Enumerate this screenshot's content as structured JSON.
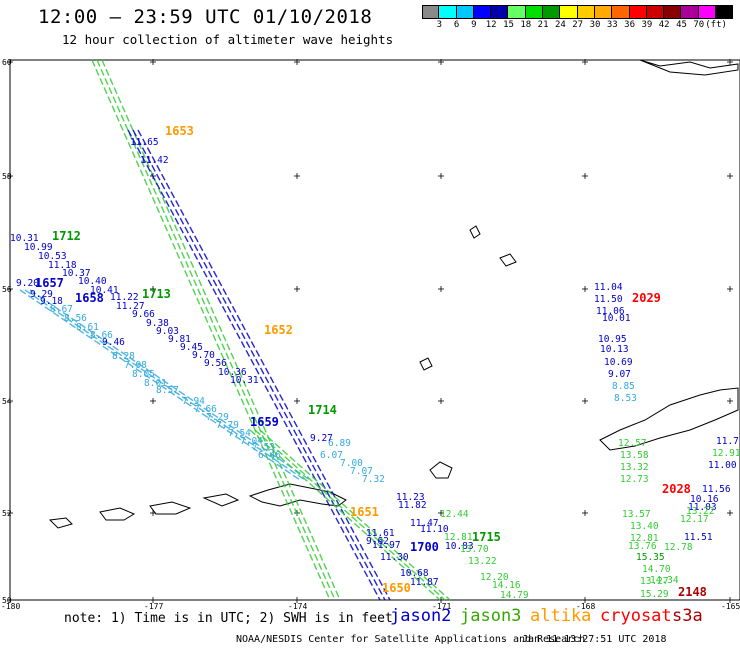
{
  "title": "12:00 – 23:59 UTC 01/10/2018",
  "subtitle": "12 hour collection of altimeter wave heights",
  "colorbar": {
    "colors": [
      "#8a8a8a",
      "#00ffff",
      "#00c8ff",
      "#0000ff",
      "#0000aa",
      "#66ff66",
      "#00dd00",
      "#009900",
      "#ffff00",
      "#ffcc00",
      "#ffaa00",
      "#ff6600",
      "#ff0000",
      "#cc0000",
      "#880000",
      "#aa0099",
      "#ff00ff",
      "#000000"
    ],
    "labels": [
      "3",
      "6",
      "9",
      "12",
      "15",
      "18",
      "21",
      "24",
      "27",
      "30",
      "33",
      "36",
      "39",
      "42",
      "45",
      "70",
      "(ft)"
    ]
  },
  "axes": {
    "lat_ticks": [
      "60",
      "58",
      "56",
      "54",
      "52",
      "50"
    ],
    "lon_ticks": [
      "-180",
      "-177",
      "-174",
      "-171",
      "-168",
      "-165"
    ]
  },
  "tracks": {
    "jason2_color": "#0000cc",
    "jason3_color": "#33cc33",
    "altika_color": "#ff9900",
    "cryosat_color": "#ff0000",
    "s3a_color": "#aa0000",
    "saral_color": "#33aadd"
  },
  "time_labels": [
    {
      "text": "1653",
      "color": "#ff9900"
    },
    {
      "text": "1712",
      "color": "#009900"
    },
    {
      "text": "1657",
      "color": "#0000cc"
    },
    {
      "text": "1658",
      "color": "#0000cc"
    },
    {
      "text": "1713",
      "color": "#009900"
    },
    {
      "text": "1652",
      "color": "#ff9900"
    },
    {
      "text": "1714",
      "color": "#009900"
    },
    {
      "text": "1659",
      "color": "#0000cc"
    },
    {
      "text": "1651",
      "color": "#ff9900"
    },
    {
      "text": "1700",
      "color": "#0000cc"
    },
    {
      "text": "1715",
      "color": "#009900"
    },
    {
      "text": "1650",
      "color": "#ff9900"
    },
    {
      "text": "2029",
      "color": "#ff0000"
    },
    {
      "text": "2028",
      "color": "#ff0000"
    },
    {
      "text": "2148",
      "color": "#aa0000"
    }
  ],
  "wave_values": [
    {
      "text": "11.65",
      "color": "#0000cc"
    },
    {
      "text": "11.42",
      "color": "#0000cc"
    },
    {
      "text": "10.31",
      "color": "#0000cc"
    },
    {
      "text": "10.99",
      "color": "#0000cc"
    },
    {
      "text": "10.53",
      "color": "#0000cc"
    },
    {
      "text": "11.18",
      "color": "#0000cc"
    },
    {
      "text": "10.37",
      "color": "#0000cc"
    },
    {
      "text": "10.40",
      "color": "#0000cc"
    },
    {
      "text": "10.41",
      "color": "#0000cc"
    },
    {
      "text": "9.20",
      "color": "#0000cc"
    },
    {
      "text": "9.29",
      "color": "#0000cc"
    },
    {
      "text": "9.18",
      "color": "#0000cc"
    },
    {
      "text": "11.22",
      "color": "#0000cc"
    },
    {
      "text": "11.27",
      "color": "#0000cc"
    },
    {
      "text": "9.66",
      "color": "#0000cc"
    },
    {
      "text": "9.38",
      "color": "#0000cc"
    },
    {
      "text": "9.03",
      "color": "#0000cc"
    },
    {
      "text": "9.81",
      "color": "#0000cc"
    },
    {
      "text": "9.45",
      "color": "#0000cc"
    },
    {
      "text": "9.70",
      "color": "#0000cc"
    },
    {
      "text": "9.56",
      "color": "#0000cc"
    },
    {
      "text": "10.36",
      "color": "#0000cc"
    },
    {
      "text": "10.31",
      "color": "#0000cc"
    },
    {
      "text": "9.46",
      "color": "#0000cc"
    },
    {
      "text": "8.67",
      "color": "#33aadd"
    },
    {
      "text": "8.56",
      "color": "#33aadd"
    },
    {
      "text": "8.61",
      "color": "#33aadd"
    },
    {
      "text": "8.66",
      "color": "#33aadd"
    },
    {
      "text": "8.28",
      "color": "#33aadd"
    },
    {
      "text": "7.98",
      "color": "#33aadd"
    },
    {
      "text": "8.05",
      "color": "#33aadd"
    },
    {
      "text": "8.01",
      "color": "#33aadd"
    },
    {
      "text": "8.57",
      "color": "#33aadd"
    },
    {
      "text": "7.94",
      "color": "#33aadd"
    },
    {
      "text": "7.66",
      "color": "#33aadd"
    },
    {
      "text": "7.29",
      "color": "#33aadd"
    },
    {
      "text": "7.79",
      "color": "#33aadd"
    },
    {
      "text": "7.54",
      "color": "#33aadd"
    },
    {
      "text": "7.04",
      "color": "#33aadd"
    },
    {
      "text": "7.53",
      "color": "#33aadd"
    },
    {
      "text": "6.46",
      "color": "#33aadd"
    },
    {
      "text": "6.89",
      "color": "#33aadd"
    },
    {
      "text": "6.07",
      "color": "#33aadd"
    },
    {
      "text": "7.00",
      "color": "#33aadd"
    },
    {
      "text": "7.07",
      "color": "#33aadd"
    },
    {
      "text": "7.32",
      "color": "#33aadd"
    },
    {
      "text": "9.27",
      "color": "#0000cc"
    },
    {
      "text": "11.23",
      "color": "#0000cc"
    },
    {
      "text": "11.82",
      "color": "#0000cc"
    },
    {
      "text": "11.47",
      "color": "#0000cc"
    },
    {
      "text": "11.10",
      "color": "#0000cc"
    },
    {
      "text": "11.61",
      "color": "#0000cc"
    },
    {
      "text": "11.97",
      "color": "#0000cc"
    },
    {
      "text": "11.30",
      "color": "#0000cc"
    },
    {
      "text": "9.62",
      "color": "#0000cc"
    },
    {
      "text": "10.83",
      "color": "#0000cc"
    },
    {
      "text": "10.68",
      "color": "#0000cc"
    },
    {
      "text": "11.87",
      "color": "#0000cc"
    },
    {
      "text": "12.44",
      "color": "#33cc33"
    },
    {
      "text": "12.81",
      "color": "#33cc33"
    },
    {
      "text": "13.70",
      "color": "#33cc33"
    },
    {
      "text": "13.22",
      "color": "#33cc33"
    },
    {
      "text": "12.20",
      "color": "#33cc33"
    },
    {
      "text": "14.16",
      "color": "#33cc33"
    },
    {
      "text": "14.79",
      "color": "#33cc33"
    },
    {
      "text": "11.04",
      "color": "#0000cc"
    },
    {
      "text": "11.50",
      "color": "#0000cc"
    },
    {
      "text": "11.06",
      "color": "#0000cc"
    },
    {
      "text": "10.95",
      "color": "#0000cc"
    },
    {
      "text": "10.13",
      "color": "#0000cc"
    },
    {
      "text": "10.01",
      "color": "#0000cc"
    },
    {
      "text": "10.69",
      "color": "#0000cc"
    },
    {
      "text": "9.07",
      "color": "#0000cc"
    },
    {
      "text": "8.85",
      "color": "#33aadd"
    },
    {
      "text": "8.53",
      "color": "#33aadd"
    },
    {
      "text": "12.57",
      "color": "#33cc33"
    },
    {
      "text": "13.58",
      "color": "#33cc33"
    },
    {
      "text": "13.32",
      "color": "#33cc33"
    },
    {
      "text": "12.73",
      "color": "#33cc33"
    },
    {
      "text": "13.57",
      "color": "#33cc33"
    },
    {
      "text": "13.40",
      "color": "#33cc33"
    },
    {
      "text": "12.81",
      "color": "#33cc33"
    },
    {
      "text": "13.76",
      "color": "#33cc33"
    },
    {
      "text": "15.35",
      "color": "#009900"
    },
    {
      "text": "14.70",
      "color": "#33cc33"
    },
    {
      "text": "14.34",
      "color": "#33cc33"
    },
    {
      "text": "13.27",
      "color": "#33cc33"
    },
    {
      "text": "15.29",
      "color": "#33cc33"
    },
    {
      "text": "11.03",
      "color": "#0000cc"
    },
    {
      "text": "10.16",
      "color": "#0000cc"
    },
    {
      "text": "11.56",
      "color": "#0000cc"
    },
    {
      "text": "12.17",
      "color": "#33cc33"
    },
    {
      "text": "13.22",
      "color": "#33cc33"
    },
    {
      "text": "11.51",
      "color": "#0000cc"
    },
    {
      "text": "12.78",
      "color": "#33cc33"
    },
    {
      "text": "11.76",
      "color": "#0000cc"
    },
    {
      "text": "11.00",
      "color": "#0000cc"
    },
    {
      "text": "12.91",
      "color": "#33cc33"
    }
  ],
  "footer": {
    "note": "note: 1) Time is in UTC; 2) SWH is in feet",
    "legend": [
      {
        "label": "jason2",
        "color": "#0000cc"
      },
      {
        "label": "jason3",
        "color": "#33aa00"
      },
      {
        "label": "altika",
        "color": "#ff9900"
      },
      {
        "label": "cryosat",
        "color": "#ff0000"
      },
      {
        "label": "s3a",
        "color": "#aa0000"
      }
    ],
    "credit": "NOAA/NESDIS Center for Satellite Applications and Research",
    "timestamp": "Jan 11 13:27:51 UTC 2018"
  }
}
